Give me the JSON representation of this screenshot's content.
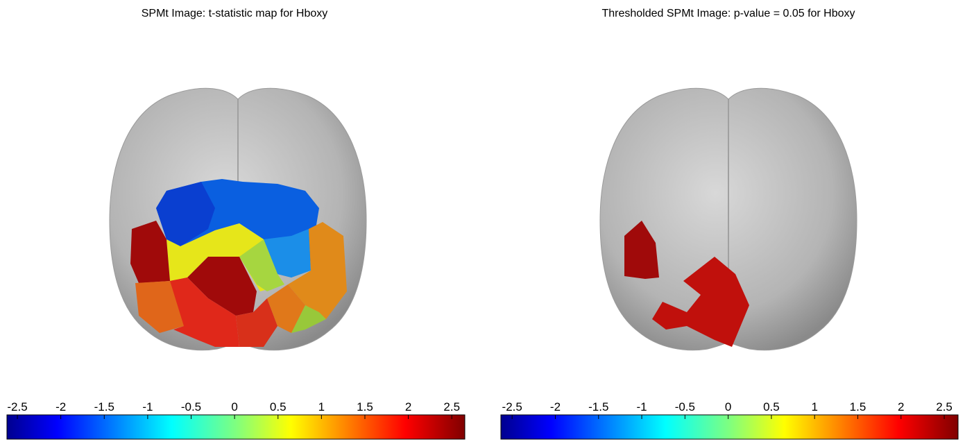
{
  "panels": [
    {
      "title": "SPMt Image: t-statistic map  for Hboxy",
      "colorbar": {
        "lim": [
          -2.62,
          2.65
        ],
        "ticks": [
          -2.5,
          -2,
          -1.5,
          -1,
          -0.5,
          0,
          0.5,
          1,
          1.5,
          2,
          2.5
        ]
      }
    },
    {
      "title": "Thresholded SPMt Image: p-value = 0.05  for Hboxy",
      "colorbar": {
        "lim": [
          -2.63,
          2.66
        ],
        "ticks": [
          -2.5,
          -2,
          -1.5,
          -1,
          -0.5,
          0,
          0.5,
          1,
          1.5,
          2,
          2.5
        ]
      }
    }
  ]
}
